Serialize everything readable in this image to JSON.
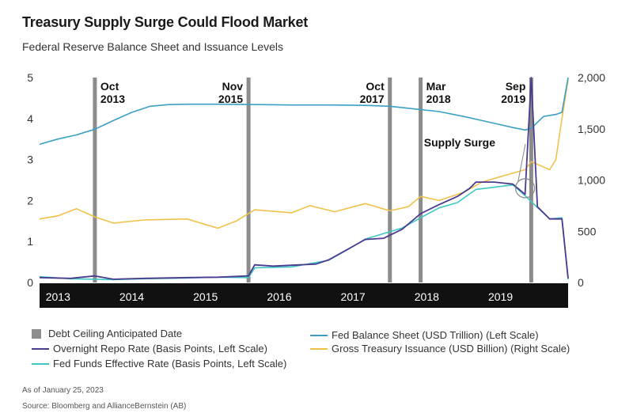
{
  "title": "Treasury Supply Surge Could Flood Market",
  "subtitle": "Federal Reserve Balance Sheet and Issuance Levels",
  "footnote": "As of January 25, 2023",
  "source": "Source: Bloomberg and AllianceBernstein (AB)",
  "colors": {
    "ceiling": "#8c8c8c",
    "balance": "#3a9fc4",
    "repo": "#4b3a8f",
    "ffr": "#3ec7c2",
    "issuance": "#f0c24a",
    "axisband": "#111111"
  },
  "chart_data": {
    "type": "line",
    "x_range": [
      "2013-01",
      "2020-03"
    ],
    "x_tick_labels": [
      {
        "label": "2013",
        "t": "2013-04"
      },
      {
        "label": "2014",
        "t": "2014-04"
      },
      {
        "label": "2015",
        "t": "2015-04"
      },
      {
        "label": "2016",
        "t": "2016-04"
      },
      {
        "label": "2017",
        "t": "2017-04"
      },
      {
        "label": "2018",
        "t": "2018-04"
      },
      {
        "label": "2019",
        "t": "2019-04"
      }
    ],
    "y_left": {
      "ticks": [
        "0",
        "1",
        "2",
        "3",
        "4",
        "5"
      ],
      "range": [
        0,
        5
      ]
    },
    "y_right": {
      "ticks": [
        "0",
        "500",
        "1,000",
        "1,500",
        "2,000"
      ],
      "range": [
        0,
        2000
      ]
    },
    "debt_ceiling_dates": [
      {
        "date": "2013-10",
        "month": "Oct",
        "year": "2013",
        "label_side": "right"
      },
      {
        "date": "2015-11",
        "month": "Nov",
        "year": "2015",
        "label_side": "left"
      },
      {
        "date": "2017-10",
        "month": "Oct",
        "year": "2017",
        "label_side": "left"
      },
      {
        "date": "2018-03",
        "month": "Mar",
        "year": "2018",
        "label_side": "right"
      },
      {
        "date": "2019-09",
        "month": "Sep",
        "year": "2019",
        "label_side": "left"
      }
    ],
    "annotation": {
      "text": "Supply Surge",
      "x": "2019-08",
      "y": 2.3
    },
    "series": [
      {
        "name": "Fed Balance Sheet (USD Trillion) (Left Scale)",
        "axis": "left",
        "points": [
          [
            "2013-01",
            3.37
          ],
          [
            "2013-04",
            3.5
          ],
          [
            "2013-07",
            3.6
          ],
          [
            "2013-10",
            3.74
          ],
          [
            "2014-01",
            3.95
          ],
          [
            "2014-04",
            4.15
          ],
          [
            "2014-07",
            4.3
          ],
          [
            "2014-10",
            4.34
          ],
          [
            "2015-01",
            4.35
          ],
          [
            "2015-06",
            4.35
          ],
          [
            "2016-01",
            4.34
          ],
          [
            "2016-06",
            4.33
          ],
          [
            "2017-01",
            4.33
          ],
          [
            "2017-06",
            4.32
          ],
          [
            "2017-10",
            4.3
          ],
          [
            "2018-01",
            4.25
          ],
          [
            "2018-06",
            4.17
          ],
          [
            "2018-10",
            4.05
          ],
          [
            "2019-01",
            3.95
          ],
          [
            "2019-04",
            3.85
          ],
          [
            "2019-06",
            3.78
          ],
          [
            "2019-08",
            3.72
          ],
          [
            "2019-09",
            3.76
          ],
          [
            "2019-11",
            4.05
          ],
          [
            "2020-01",
            4.1
          ],
          [
            "2020-02",
            4.15
          ],
          [
            "2020-03",
            5.0
          ]
        ]
      },
      {
        "name": "Overnight Repo Rate (Basis Points, Left Scale)",
        "axis": "left",
        "points": [
          [
            "2013-01",
            0.12
          ],
          [
            "2013-06",
            0.1
          ],
          [
            "2013-10",
            0.16
          ],
          [
            "2014-01",
            0.08
          ],
          [
            "2014-06",
            0.1
          ],
          [
            "2015-01",
            0.12
          ],
          [
            "2015-06",
            0.13
          ],
          [
            "2015-11",
            0.16
          ],
          [
            "2015-12",
            0.43
          ],
          [
            "2016-03",
            0.4
          ],
          [
            "2016-06",
            0.42
          ],
          [
            "2016-10",
            0.45
          ],
          [
            "2016-12",
            0.55
          ],
          [
            "2017-03",
            0.8
          ],
          [
            "2017-06",
            1.05
          ],
          [
            "2017-09",
            1.08
          ],
          [
            "2017-12",
            1.3
          ],
          [
            "2018-03",
            1.68
          ],
          [
            "2018-06",
            1.9
          ],
          [
            "2018-09",
            2.1
          ],
          [
            "2018-11",
            2.3
          ],
          [
            "2018-12",
            2.45
          ],
          [
            "2019-03",
            2.45
          ],
          [
            "2019-06",
            2.4
          ],
          [
            "2019-08",
            2.15
          ],
          [
            "2019-09",
            5.0
          ],
          [
            "2019-10",
            1.85
          ],
          [
            "2019-12",
            1.55
          ],
          [
            "2020-02",
            1.55
          ],
          [
            "2020-03",
            0.1
          ]
        ]
      },
      {
        "name": "Fed Funds Effective Rate (Basis Points, Left Scale)",
        "axis": "left",
        "points": [
          [
            "2013-01",
            0.14
          ],
          [
            "2013-06",
            0.09
          ],
          [
            "2014-01",
            0.07
          ],
          [
            "2014-06",
            0.09
          ],
          [
            "2015-01",
            0.11
          ],
          [
            "2015-06",
            0.13
          ],
          [
            "2015-11",
            0.12
          ],
          [
            "2015-12",
            0.36
          ],
          [
            "2016-06",
            0.38
          ],
          [
            "2016-12",
            0.54
          ],
          [
            "2017-03",
            0.79
          ],
          [
            "2017-06",
            1.06
          ],
          [
            "2017-12",
            1.33
          ],
          [
            "2018-03",
            1.58
          ],
          [
            "2018-06",
            1.82
          ],
          [
            "2018-09",
            1.95
          ],
          [
            "2018-12",
            2.27
          ],
          [
            "2019-06",
            2.38
          ],
          [
            "2019-08",
            2.12
          ],
          [
            "2019-10",
            1.83
          ],
          [
            "2019-12",
            1.55
          ],
          [
            "2020-02",
            1.58
          ],
          [
            "2020-03",
            0.08
          ]
        ]
      },
      {
        "name": "Gross Treasury Issuance (USD Billion) (Right Scale)",
        "axis": "right",
        "points": [
          [
            "2013-01",
            620
          ],
          [
            "2013-04",
            650
          ],
          [
            "2013-07",
            720
          ],
          [
            "2013-10",
            640
          ],
          [
            "2014-01",
            580
          ],
          [
            "2014-06",
            610
          ],
          [
            "2015-01",
            620
          ],
          [
            "2015-06",
            530
          ],
          [
            "2015-09",
            600
          ],
          [
            "2015-12",
            710
          ],
          [
            "2016-06",
            680
          ],
          [
            "2016-09",
            750
          ],
          [
            "2017-01",
            690
          ],
          [
            "2017-06",
            770
          ],
          [
            "2017-10",
            700
          ],
          [
            "2018-01",
            740
          ],
          [
            "2018-03",
            840
          ],
          [
            "2018-06",
            800
          ],
          [
            "2018-10",
            880
          ],
          [
            "2019-01",
            980
          ],
          [
            "2019-05",
            1050
          ],
          [
            "2019-08",
            1100
          ],
          [
            "2019-09",
            1180
          ],
          [
            "2019-12",
            1100
          ],
          [
            "2020-01",
            1200
          ],
          [
            "2020-02",
            1600
          ],
          [
            "2020-03",
            1980
          ]
        ]
      }
    ]
  },
  "legend": {
    "ceiling": "Debt Ceiling Anticipated Date",
    "repo": "Overnight Repo Rate (Basis Points, Left Scale)",
    "ffr": "Fed Funds Effective Rate (Basis Points, Left Scale)",
    "balance": "Fed Balance Sheet (USD Trillion) (Left Scale)",
    "issuance": "Gross Treasury Issuance (USD Billion) (Right Scale)"
  }
}
